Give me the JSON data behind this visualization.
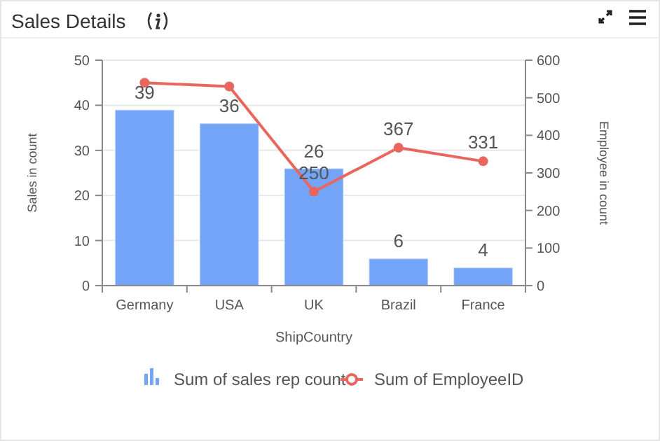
{
  "chart_data": {
    "type": "bar",
    "title": "Sales Details",
    "xlabel": "ShipCountry",
    "ylabel": "Sales in count",
    "y2label": "Employee in count",
    "categories": [
      "Germany",
      "USA",
      "UK",
      "Brazil",
      "France"
    ],
    "series": [
      {
        "name": "Sum of sales rep count",
        "color": "#74a4f7",
        "values": [
          39,
          36,
          26,
          6,
          4
        ],
        "data_labels": true
      },
      {
        "name": "Sum of EmployeeID",
        "type": "line",
        "axis": "y2",
        "color": "#e8665e",
        "values": [
          540,
          530,
          250,
          367,
          331
        ],
        "value_labels": [
          null,
          null,
          "250",
          "367",
          "331"
        ],
        "marker": "circle"
      }
    ],
    "ylim": [
      0,
      50
    ],
    "yticks": [
      0,
      10,
      20,
      30,
      40,
      50
    ],
    "y2lim": [
      0,
      600
    ],
    "y2ticks": [
      0,
      100,
      200,
      300,
      400,
      500,
      600
    ],
    "grid": "y",
    "legend": "bottom"
  }
}
